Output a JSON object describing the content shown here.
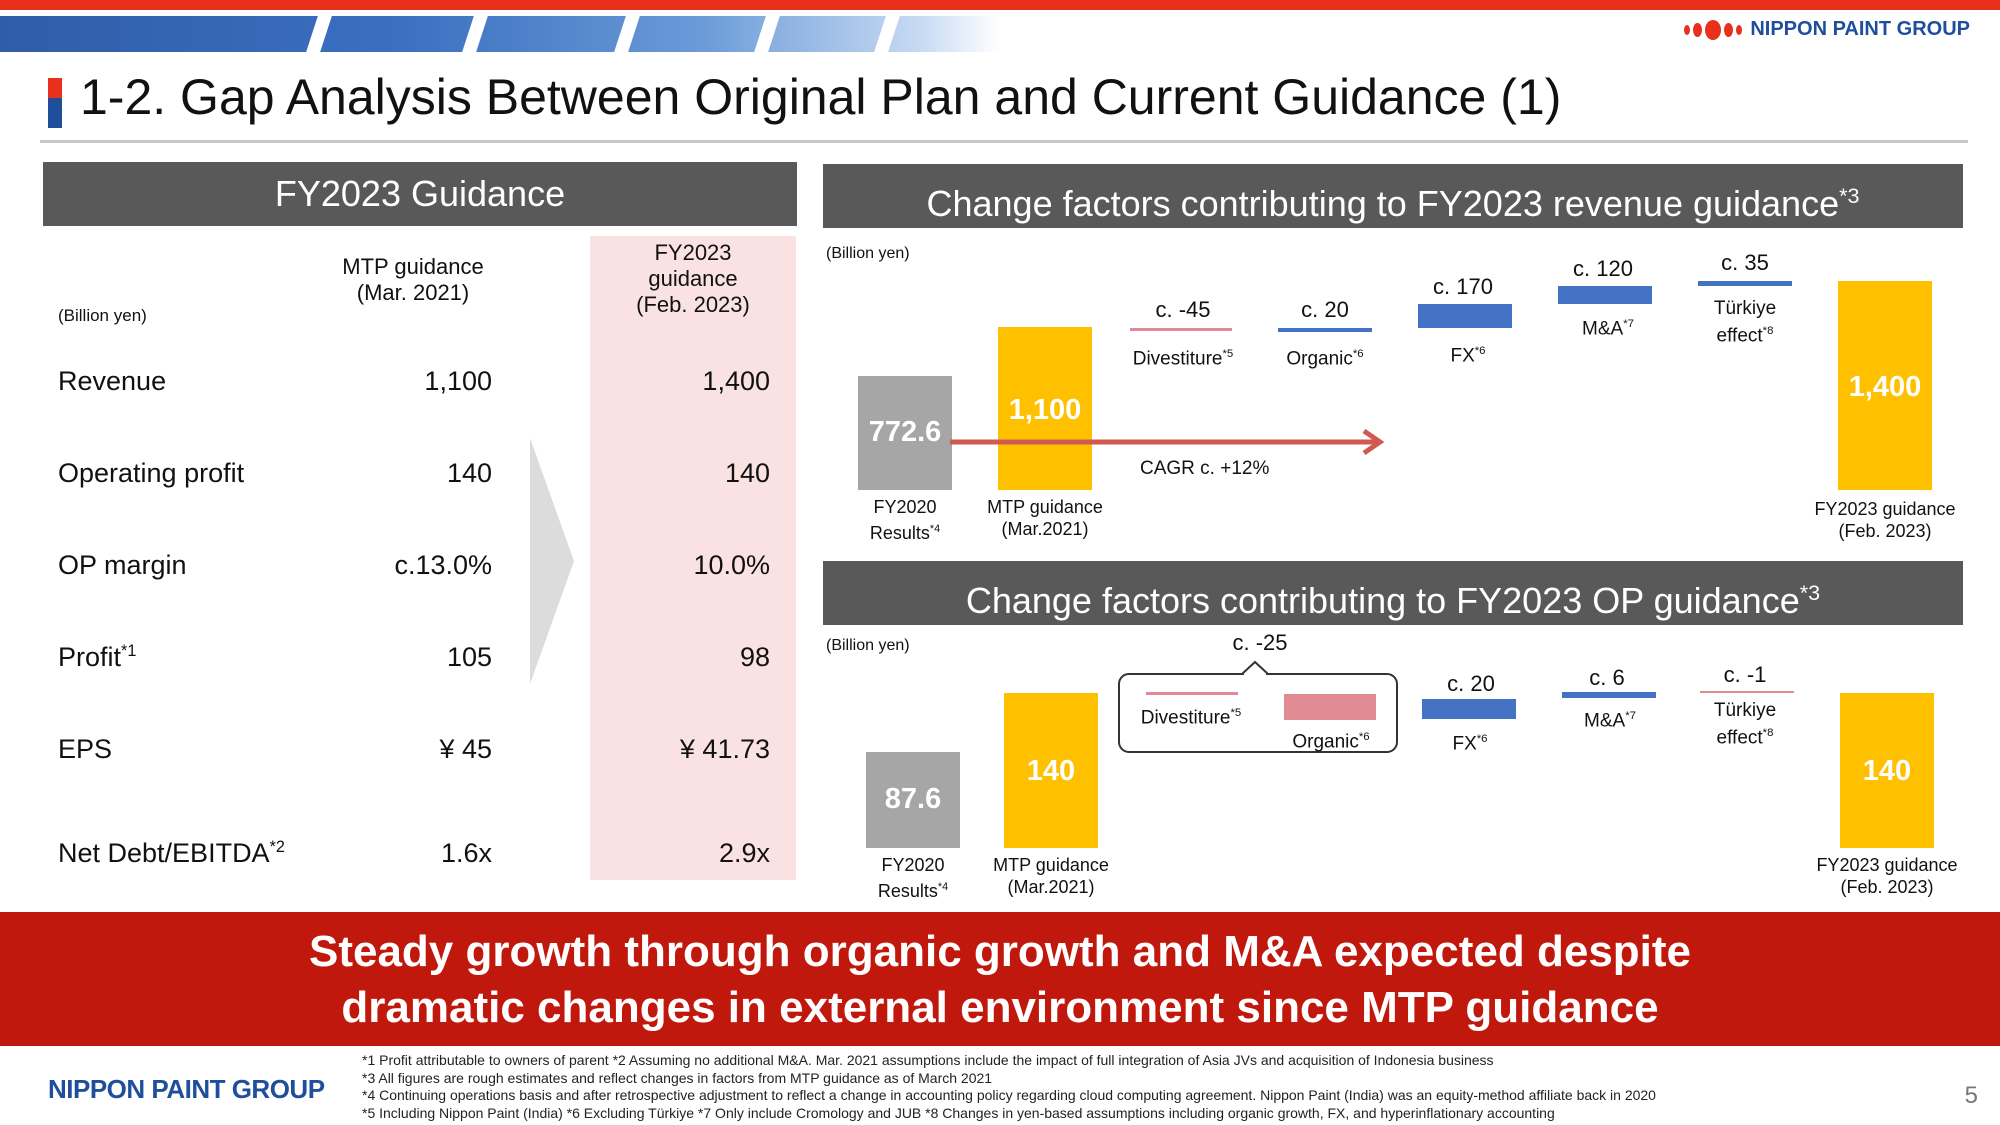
{
  "header": {
    "brand": "NIPPON PAINT GROUP",
    "title": "1-2. Gap Analysis Between Original Plan and Current Guidance (1)"
  },
  "guidance_table": {
    "heading": "FY2023 Guidance",
    "unit": "(Billion yen)",
    "col1_header": [
      "MTP guidance",
      "(Mar. 2021)"
    ],
    "col2_header": [
      "FY2023",
      "guidance",
      "(Feb. 2023)"
    ],
    "rows": [
      {
        "label": "Revenue",
        "sup": "",
        "mtp": "1,100",
        "fy2023": "1,400"
      },
      {
        "label": "Operating profit",
        "sup": "",
        "mtp": "140",
        "fy2023": "140"
      },
      {
        "label": "OP margin",
        "sup": "",
        "mtp": "c.13.0%",
        "fy2023": "10.0%"
      },
      {
        "label": "Profit",
        "sup": "*1",
        "mtp": "105",
        "fy2023": "98"
      },
      {
        "label": "EPS",
        "sup": "",
        "mtp": "¥ 45",
        "fy2023": "¥ 41.73"
      },
      {
        "label": "Net Debt/EBITDA",
        "sup": "*2",
        "mtp": "1.6x",
        "fy2023": "2.9x"
      }
    ]
  },
  "revenue_chart": {
    "heading": "Change factors contributing to FY2023 revenue guidance",
    "heading_sup": "*3",
    "unit": "(Billion yen)",
    "cagr": "CAGR c. +12%",
    "bars": {
      "fy2020": {
        "value": "772.6",
        "label": [
          "FY2020",
          "Results"
        ],
        "sup": "*4"
      },
      "mtp": {
        "value": "1,100",
        "label": [
          "MTP guidance",
          "(Mar.2021)"
        ]
      },
      "fy2023": {
        "value": "1,400",
        "label": [
          "FY2023 guidance",
          "(Feb. 2023)"
        ]
      }
    },
    "factors": [
      {
        "value": "c. -45",
        "label": "Divestiture",
        "sup": "*5"
      },
      {
        "value": "c. 20",
        "label": "Organic",
        "sup": "*6"
      },
      {
        "value": "c. 170",
        "label": "FX",
        "sup": "*6"
      },
      {
        "value": "c. 120",
        "label": "M&A",
        "sup": "*7"
      },
      {
        "value": "c. 35",
        "label": "Türkiye",
        "label2": "effect",
        "sup": "*8"
      }
    ]
  },
  "op_chart": {
    "heading": "Change factors contributing to FY2023 OP guidance",
    "heading_sup": "*3",
    "unit": "(Billion yen)",
    "group_value": "c. -25",
    "bars": {
      "fy2020": {
        "value": "87.6",
        "label": [
          "FY2020",
          "Results"
        ],
        "sup": "*4"
      },
      "mtp": {
        "value": "140",
        "label": [
          "MTP guidance",
          "(Mar.2021)"
        ]
      },
      "fy2023": {
        "value": "140",
        "label": [
          "FY2023 guidance",
          "(Feb. 2023)"
        ]
      }
    },
    "factors": [
      {
        "value": "",
        "label": "Divestiture",
        "sup": "*5"
      },
      {
        "value": "",
        "label": "Organic",
        "sup": "*6"
      },
      {
        "value": "c. 20",
        "label": "FX",
        "sup": "*6"
      },
      {
        "value": "c. 6",
        "label": "M&A",
        "sup": "*7"
      },
      {
        "value": "c. -1",
        "label": "Türkiye",
        "label2": "effect",
        "sup": "*8"
      }
    ]
  },
  "banner": {
    "line1": "Steady growth through organic growth and M&A expected despite",
    "line2": "dramatic changes in external environment since MTP guidance"
  },
  "footer": {
    "brand": "NIPPON PAINT GROUP",
    "notes": [
      "*1 Profit attributable to owners of parent        *2 Assuming no additional M&A. Mar. 2021 assumptions include the impact of full integration of Asia JVs and acquisition of Indonesia business",
      "*3 All figures are rough estimates and reflect changes in factors from MTP guidance as of March 2021",
      "*4 Continuing operations basis and after retrospective adjustment to reflect a change in accounting policy regarding cloud computing agreement. Nippon Paint (India) was an equity-method affiliate back in 2020",
      "*5 Including Nippon Paint (India)        *6 Excluding Türkiye        *7 Only include Cromology and JUB        *8 Changes in yen-based assumptions including organic growth, FX, and hyperinflationary accounting"
    ],
    "page": "5"
  },
  "colors": {
    "red": "#e8301c",
    "banner_red": "#c0180c",
    "navy": "#1f4e9c",
    "gold": "#ffc000",
    "grey_bar": "#a6a6a6",
    "blue": "#4472c4",
    "pink_col": "#fbe2e2",
    "panel_grey": "#595959"
  }
}
